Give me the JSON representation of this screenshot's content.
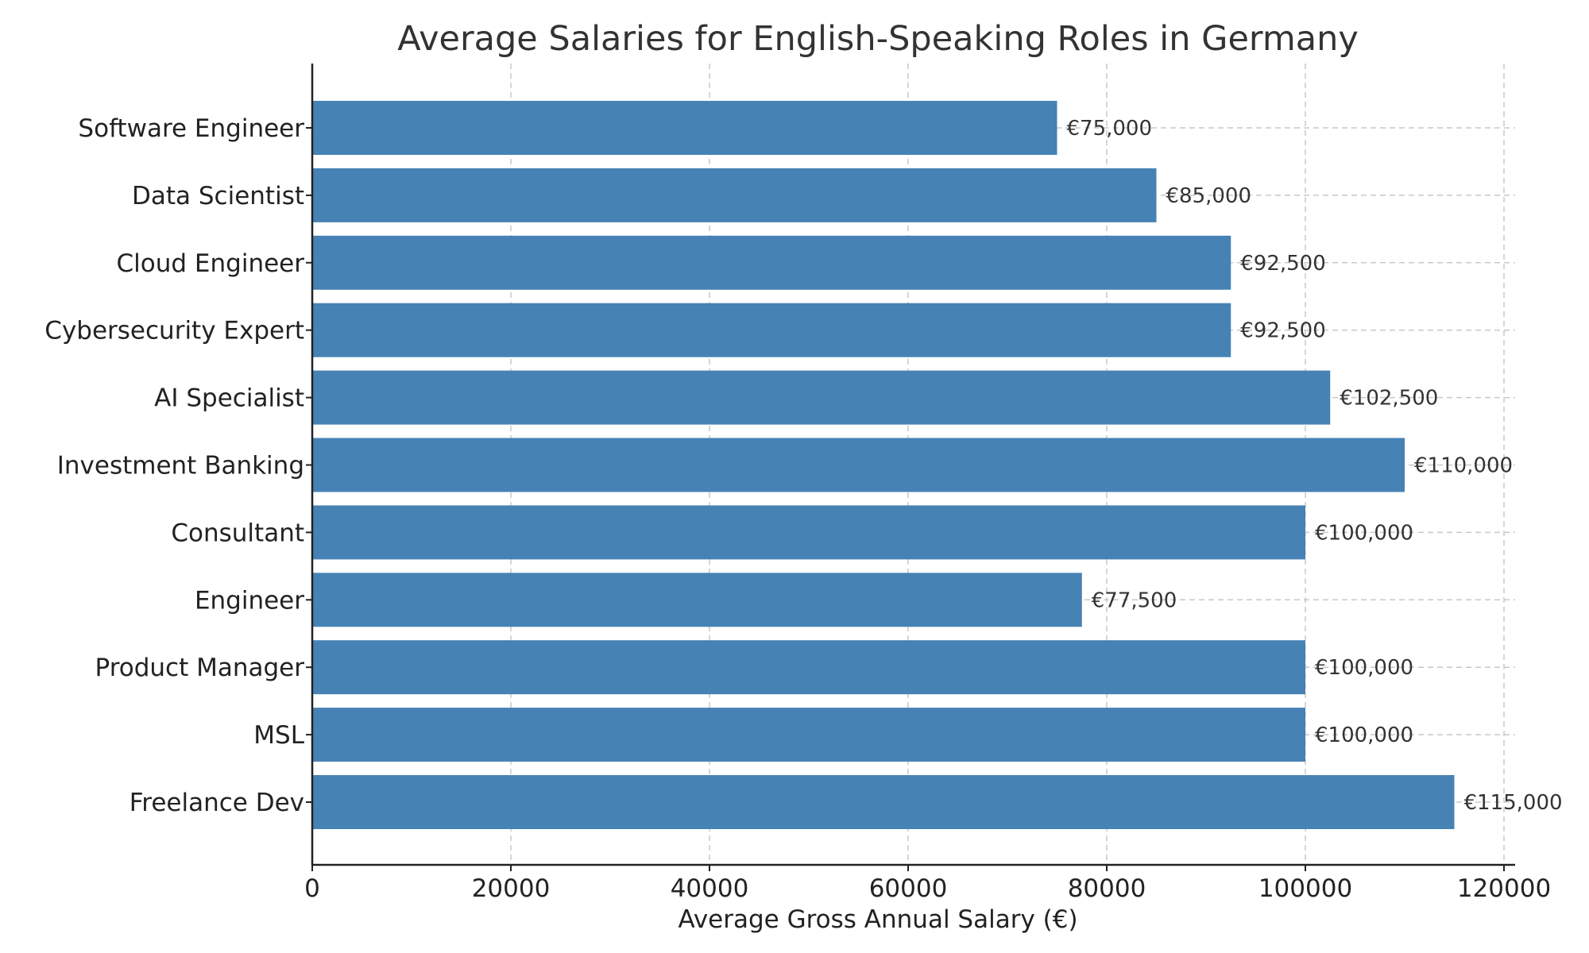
{
  "chart_data": {
    "type": "bar",
    "orientation": "horizontal",
    "title": "Average Salaries for English-Speaking Roles in Germany",
    "xlabel": "Average Gross Annual Salary (€)",
    "ylabel": "",
    "xlim": [
      0,
      120000
    ],
    "xticks": [
      0,
      20000,
      40000,
      60000,
      80000,
      100000,
      120000
    ],
    "xtick_labels": [
      "0",
      "20000",
      "40000",
      "60000",
      "80000",
      "100000",
      "120000"
    ],
    "grid": true,
    "categories": [
      "Software Engineer",
      "Data Scientist",
      "Cloud Engineer",
      "Cybersecurity Expert",
      "AI Specialist",
      "Investment Banking",
      "Consultant",
      "Engineer",
      "Product Manager",
      "MSL",
      "Freelance Dev"
    ],
    "values": [
      75000,
      85000,
      92500,
      92500,
      102500,
      110000,
      100000,
      77500,
      100000,
      100000,
      115000
    ],
    "value_labels": [
      "€75,000",
      "€85,000",
      "€92,500",
      "€92,500",
      "€102,500",
      "€110,000",
      "€100,000",
      "€77,500",
      "€100,000",
      "€100,000",
      "€115,000"
    ],
    "bar_color": "#4682b4"
  }
}
